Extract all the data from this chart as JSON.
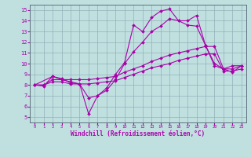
{
  "bg_color": "#c0e0e0",
  "grid_color": "#90b0b8",
  "line_color": "#aa00aa",
  "xlabel": "Windchill (Refroidissement éolien,°C)",
  "xlim": [
    -0.5,
    23.5
  ],
  "ylim": [
    4.5,
    15.5
  ],
  "xticks": [
    0,
    1,
    2,
    3,
    4,
    5,
    6,
    7,
    8,
    9,
    10,
    11,
    12,
    13,
    14,
    15,
    16,
    17,
    18,
    19,
    20,
    21,
    22,
    23
  ],
  "yticks": [
    5,
    6,
    7,
    8,
    9,
    10,
    11,
    12,
    13,
    14,
    15
  ],
  "lines": [
    {
      "x": [
        0,
        1,
        2,
        3,
        4,
        5,
        6,
        7,
        8,
        9,
        10,
        11,
        12,
        13,
        14,
        15,
        16,
        17,
        18,
        19,
        20,
        21,
        22,
        23
      ],
      "y": [
        8.0,
        7.9,
        8.8,
        8.6,
        8.2,
        8.1,
        5.3,
        7.0,
        7.7,
        9.0,
        10.1,
        13.6,
        13.0,
        14.3,
        14.9,
        15.1,
        14.0,
        14.0,
        14.5,
        11.7,
        9.8,
        9.5,
        9.2,
        9.8
      ]
    },
    {
      "x": [
        0,
        2,
        3,
        4,
        5,
        6,
        7,
        8,
        9,
        10,
        11,
        12,
        13,
        14,
        15,
        16,
        17,
        18,
        19,
        20,
        21,
        22,
        23
      ],
      "y": [
        8.0,
        8.8,
        8.5,
        8.3,
        8.1,
        6.8,
        7.0,
        7.5,
        8.5,
        10.0,
        11.1,
        12.0,
        13.0,
        13.5,
        14.2,
        14.0,
        13.6,
        13.5,
        11.7,
        10.0,
        9.5,
        9.8,
        9.8
      ]
    },
    {
      "x": [
        0,
        1,
        2,
        3,
        4,
        5,
        6,
        7,
        8,
        9,
        10,
        11,
        12,
        13,
        14,
        15,
        16,
        17,
        18,
        19,
        20,
        21,
        22,
        23
      ],
      "y": [
        8.0,
        8.0,
        8.5,
        8.5,
        8.5,
        8.5,
        8.5,
        8.6,
        8.7,
        8.8,
        9.2,
        9.5,
        9.8,
        10.2,
        10.5,
        10.8,
        11.0,
        11.2,
        11.4,
        11.6,
        11.6,
        9.5,
        9.5,
        9.8
      ]
    },
    {
      "x": [
        0,
        1,
        2,
        3,
        4,
        5,
        6,
        7,
        8,
        9,
        10,
        11,
        12,
        13,
        14,
        15,
        16,
        17,
        18,
        19,
        20,
        21,
        22,
        23
      ],
      "y": [
        8.0,
        8.0,
        8.3,
        8.3,
        8.1,
        8.1,
        8.1,
        8.2,
        8.3,
        8.4,
        8.7,
        9.0,
        9.3,
        9.6,
        9.8,
        10.0,
        10.3,
        10.5,
        10.7,
        10.9,
        10.9,
        9.3,
        9.3,
        9.5
      ]
    }
  ]
}
